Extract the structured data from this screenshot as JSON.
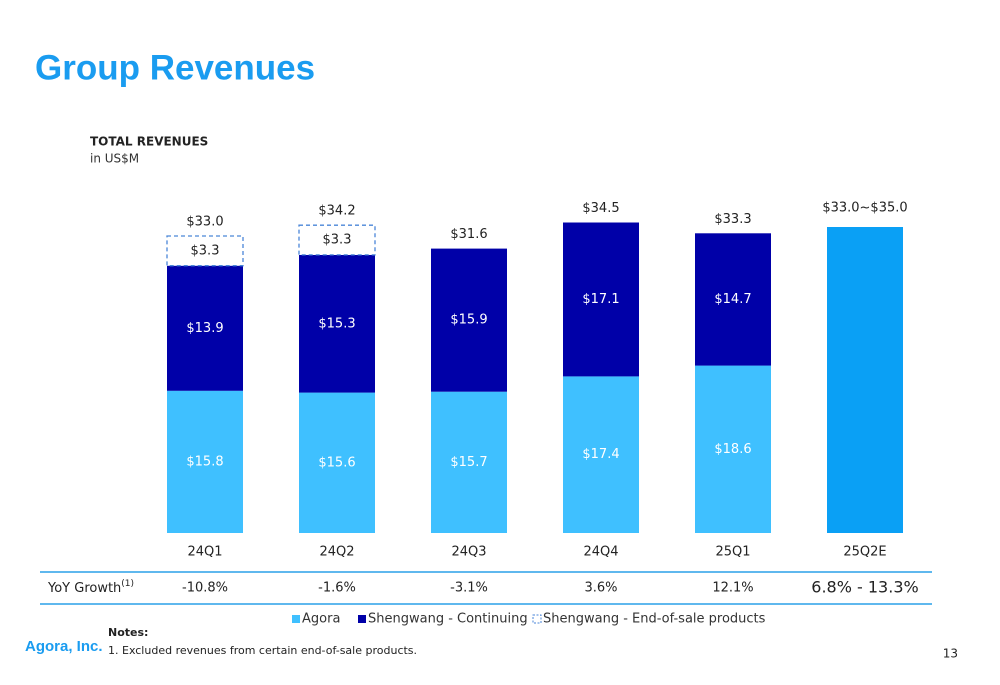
{
  "page_title": "Group Revenues",
  "chart_data": {
    "type": "stacked_bar",
    "title": "TOTAL REVENUES",
    "subtitle": "in US$M",
    "categories": [
      "24Q1",
      "24Q2",
      "24Q3",
      "24Q4",
      "25Q1",
      "25Q2E"
    ],
    "series": [
      {
        "name": "Agora",
        "color": "#3fc0ff",
        "values": [
          15.8,
          15.6,
          15.7,
          17.4,
          18.6,
          null
        ],
        "value_labels": [
          "$15.8",
          "$15.6",
          "$15.7",
          "$17.4",
          "$18.6",
          null
        ]
      },
      {
        "name": "Shengwang - Continuing",
        "color": "#0000a8",
        "values": [
          13.9,
          15.3,
          15.9,
          17.1,
          14.7,
          null
        ],
        "value_labels": [
          "$13.9",
          "$15.3",
          "$15.9",
          "$17.1",
          "$14.7",
          null
        ]
      },
      {
        "name": "Shengwang - End-of-sale products",
        "color": "#4a86d8",
        "style": "dashed",
        "values": [
          3.3,
          3.3,
          null,
          null,
          null,
          null
        ],
        "value_labels": [
          "$3.3",
          "$3.3",
          null,
          null,
          null,
          null
        ]
      }
    ],
    "totals": [
      33.0,
      34.2,
      31.6,
      34.5,
      33.3,
      null
    ],
    "total_labels": [
      "$33.0",
      "$34.2",
      "$31.6",
      "$34.5",
      "$33.3",
      null
    ],
    "guidance": {
      "low": 33.0,
      "high": 35.0,
      "label": "$33.0~$35.0",
      "color": "#0aa0f5",
      "yoy_low": 6.8,
      "yoy_high": 13.3,
      "yoy_label": "6.8% - 13.3%"
    },
    "yoy": {
      "label": "YoY Growth",
      "note_ref": "(1)",
      "values": [
        -10.8,
        -1.6,
        -3.1,
        3.6,
        12.1
      ],
      "value_labels": [
        "-10.8%",
        "-1.6%",
        "-3.1%",
        "3.6%",
        "12.1%"
      ]
    },
    "ylim": [
      0,
      38
    ],
    "legend": "bottom"
  },
  "notes": {
    "title": "Notes:",
    "items": [
      "1. Excluded revenues from certain end-of-sale products."
    ]
  },
  "footer": {
    "company": "Agora, Inc.",
    "page": "13"
  }
}
